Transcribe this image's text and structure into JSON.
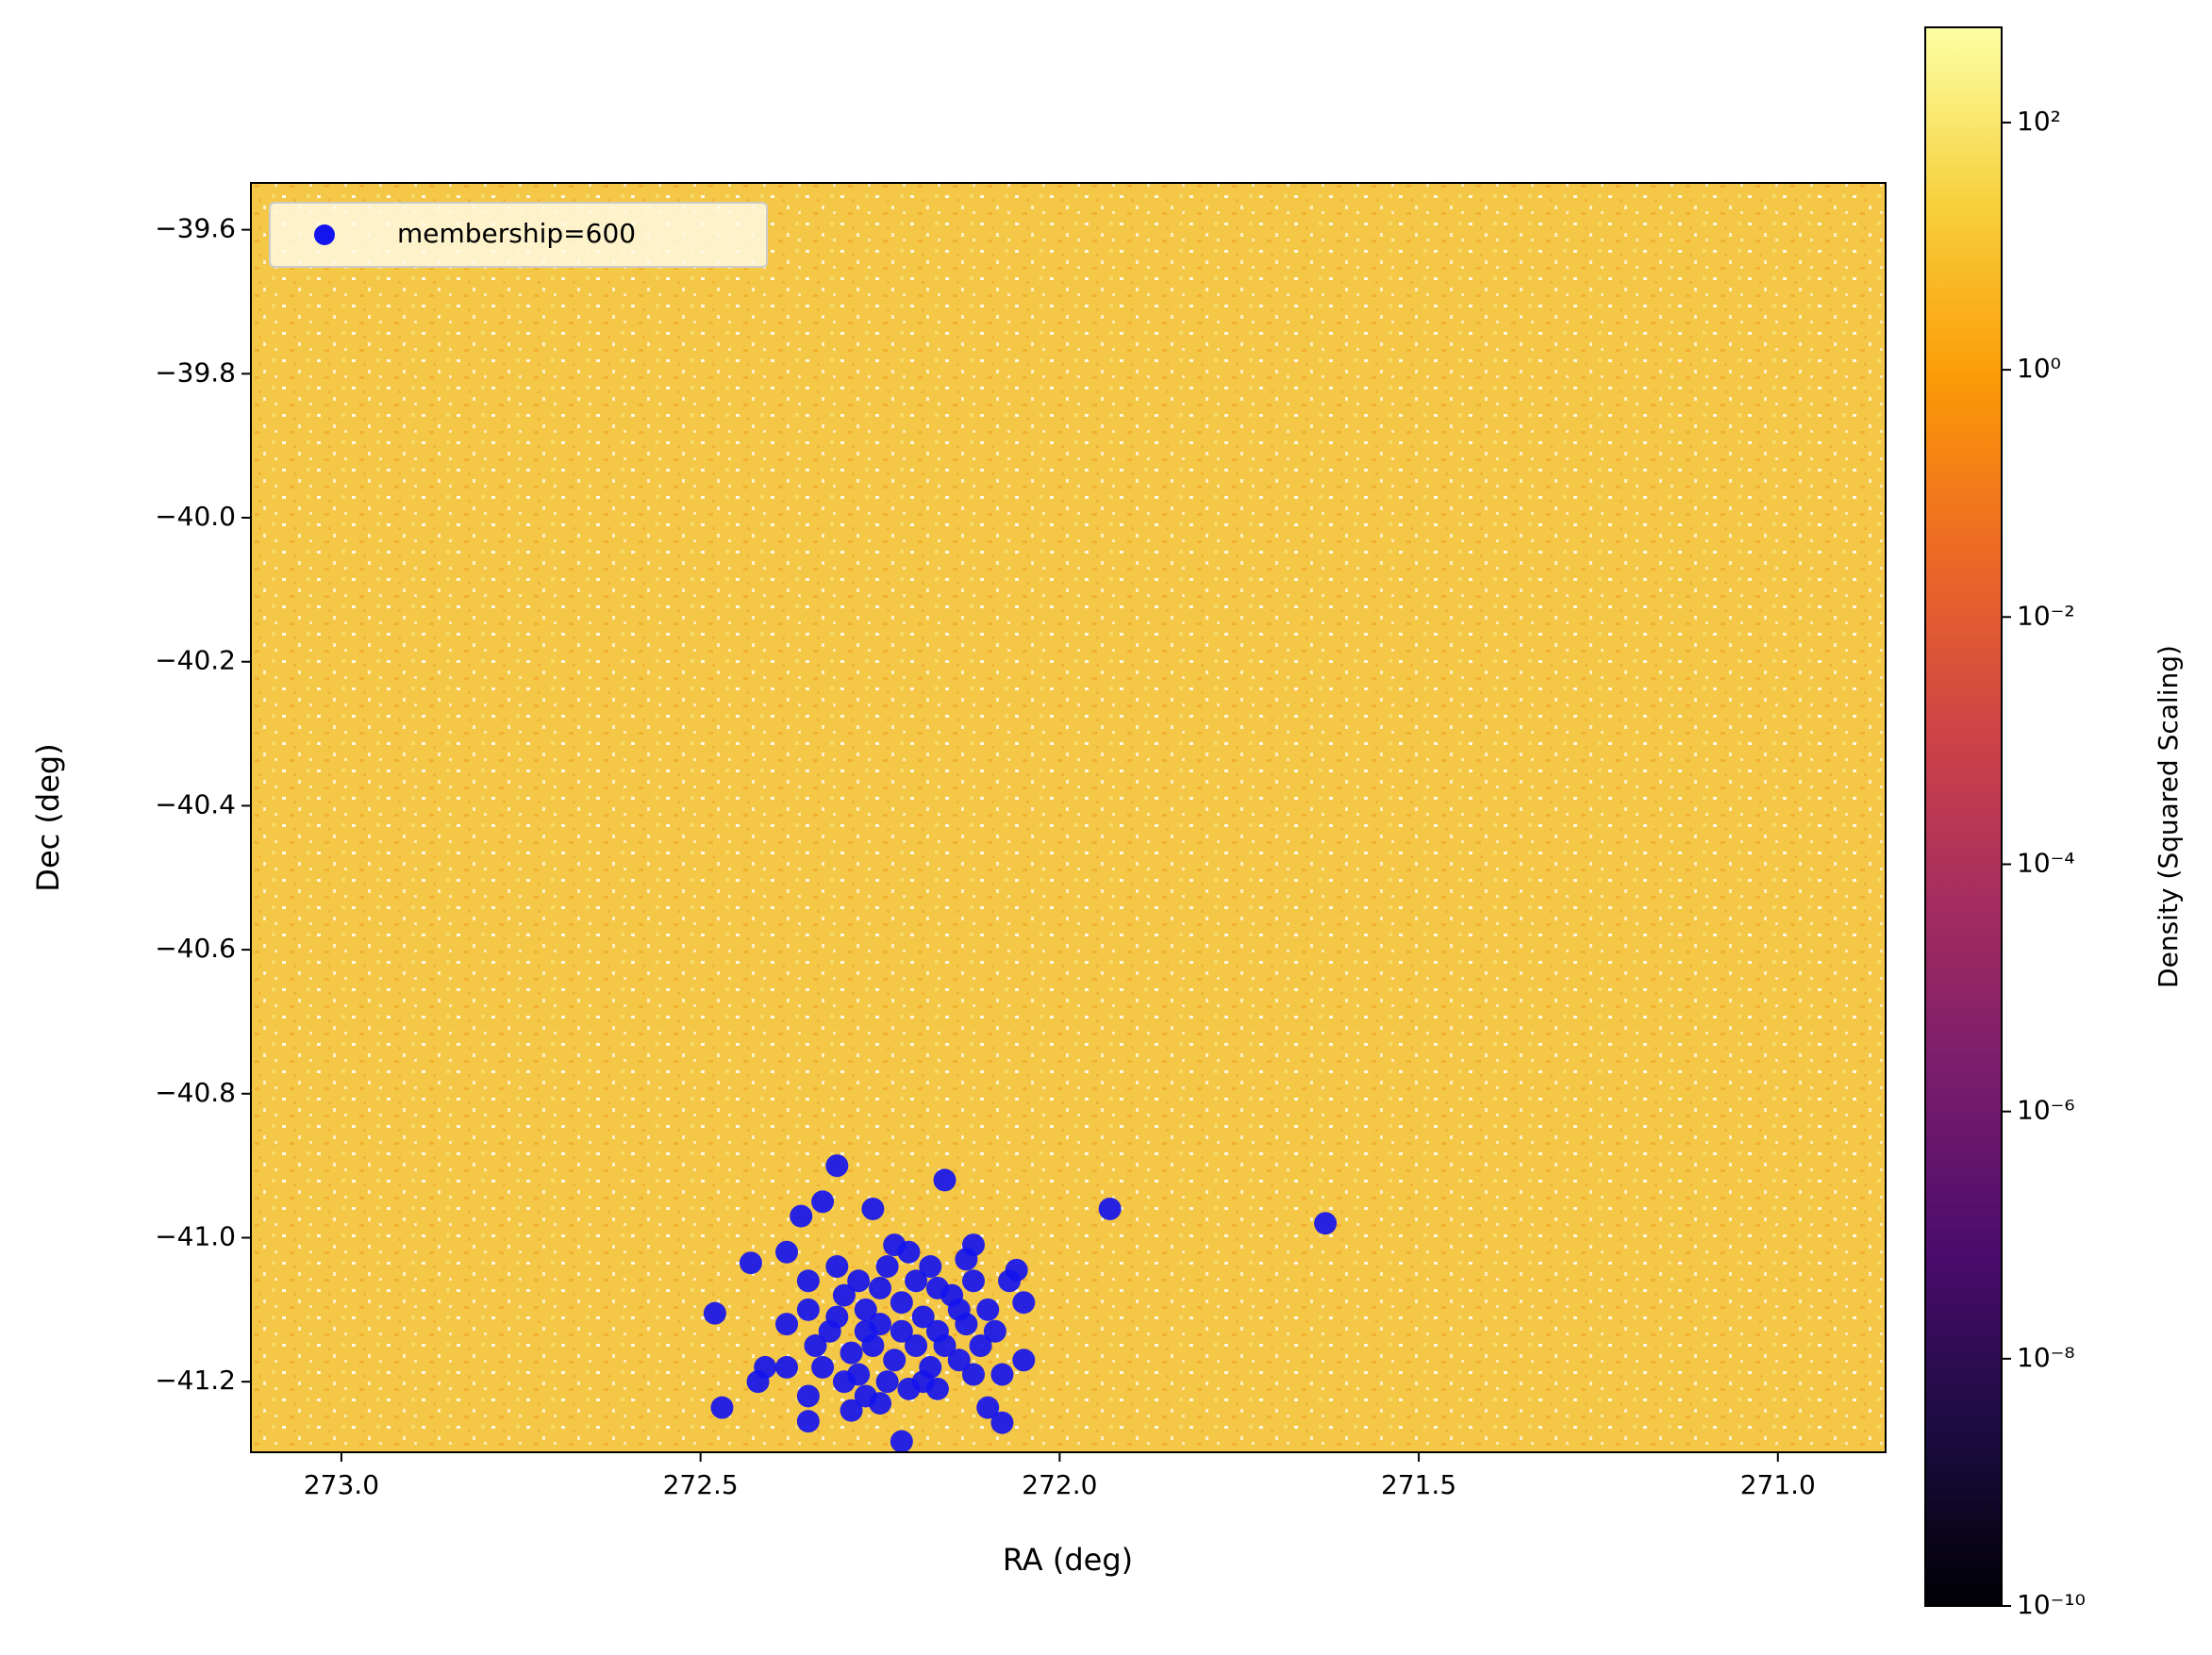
{
  "chart_data": {
    "type": "scatter",
    "x_label": "RA (deg)",
    "y_label": "Dec (deg)",
    "xlim": [
      273.126,
      270.85
    ],
    "ylim": [
      -41.298,
      -39.535
    ],
    "xticks": [
      {
        "value": 273.0,
        "label": "273.0"
      },
      272.5,
      {
        "value": 272.0,
        "label": "272.0"
      },
      271.5,
      {
        "value": 271.0,
        "label": "271.0"
      }
    ],
    "yticks": [
      {
        "value": -39.6,
        "label": "−39.6"
      },
      {
        "value": -39.8,
        "label": "−39.8"
      },
      {
        "value": -40.0,
        "label": "−40.0"
      },
      {
        "value": -40.2,
        "label": "−40.2"
      },
      {
        "value": -40.4,
        "label": "−40.4"
      },
      {
        "value": -40.6,
        "label": "−40.6"
      },
      {
        "value": -40.8,
        "label": "−40.8"
      },
      {
        "value": -41.0,
        "label": "−41.0"
      },
      {
        "value": -41.2,
        "label": "−41.2"
      }
    ],
    "background_color": "#f4c846",
    "legend": "upper left",
    "series": [
      {
        "name": "membership=600",
        "color": "#1414ee",
        "x": [
          272.31,
          272.16,
          271.93,
          271.63,
          272.26,
          272.36,
          272.33,
          272.38,
          272.43,
          272.48,
          272.47,
          272.42,
          272.35,
          272.29,
          272.1,
          272.08,
          272.08,
          272.05,
          272.05,
          272.06,
          272.07,
          272.12,
          272.13,
          272.23,
          272.21,
          272.31,
          272.35,
          272.38,
          272.41,
          272.38,
          272.35,
          272.22,
          272.25,
          272.17,
          272.3,
          272.27,
          272.25,
          272.22,
          272.19,
          272.17,
          272.15,
          272.13,
          272.11,
          272.09,
          272.32,
          272.34,
          272.29,
          272.26,
          272.23,
          272.2,
          272.18,
          272.14,
          272.12,
          272.28,
          272.24,
          272.21,
          272.31,
          272.28,
          272.25,
          272.2,
          272.17,
          272.14,
          272.1,
          272.33,
          272.3,
          272.27,
          272.19,
          272.16,
          272.22,
          272.27,
          272.35,
          272.24,
          272.18,
          272.12
        ],
        "y": [
          -40.9,
          -40.92,
          -40.96,
          -40.98,
          -40.96,
          -40.97,
          -40.95,
          -41.02,
          -41.035,
          -41.105,
          -41.236,
          -41.2,
          -41.255,
          -41.24,
          -41.236,
          -41.257,
          -41.19,
          -41.17,
          -41.09,
          -41.045,
          -41.06,
          -41.01,
          -41.03,
          -41.01,
          -41.02,
          -41.04,
          -41.06,
          -41.12,
          -41.18,
          -41.18,
          -41.22,
          -41.283,
          -41.23,
          -41.21,
          -41.08,
          -41.1,
          -41.12,
          -41.09,
          -41.11,
          -41.13,
          -41.08,
          -41.12,
          -41.15,
          -41.13,
          -41.13,
          -41.15,
          -41.16,
          -41.15,
          -41.17,
          -41.15,
          -41.18,
          -41.17,
          -41.19,
          -41.19,
          -41.2,
          -41.21,
          -41.11,
          -41.06,
          -41.07,
          -41.06,
          -41.07,
          -41.1,
          -41.1,
          -41.18,
          -41.2,
          -41.22,
          -41.2,
          -41.15,
          -41.13,
          -41.13,
          -41.1,
          -41.04,
          -41.04,
          -41.06
        ]
      }
    ],
    "colorbar": {
      "label": "Density (Squared Scaling)",
      "scale": "log",
      "lim": [
        1e-10,
        589
      ],
      "ticks": [
        {
          "value": 1e-10,
          "label": "10⁻¹⁰"
        },
        {
          "value": 1e-08,
          "label": "10⁻⁸"
        },
        {
          "value": 1e-06,
          "label": "10⁻⁶"
        },
        {
          "value": 0.0001,
          "label": "10⁻⁴"
        },
        {
          "value": 0.01,
          "label": "10⁻²"
        },
        {
          "value": 1,
          "label": "10⁰"
        },
        {
          "value": 100,
          "label": "10²"
        }
      ],
      "colors": [
        "#000004",
        "#1b0c41",
        "#4a0c6b",
        "#781c6d",
        "#a52c60",
        "#cf4446",
        "#ed6925",
        "#fb9b06",
        "#f7d13d",
        "#fcffa4"
      ]
    }
  }
}
